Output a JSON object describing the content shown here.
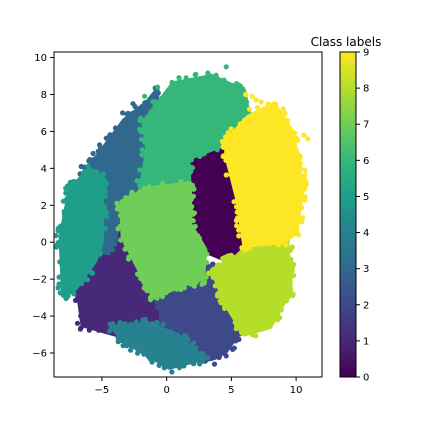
{
  "chart_data": {
    "type": "scatter",
    "title": "",
    "xlabel": "",
    "ylabel": "",
    "xlim": [
      -8.7,
      12.0
    ],
    "ylim": [
      -7.3,
      10.3
    ],
    "xticks": [
      -5,
      0,
      5,
      10
    ],
    "yticks": [
      -6,
      -4,
      -2,
      0,
      2,
      4,
      6,
      8,
      10
    ],
    "grid": false,
    "colormap": "viridis",
    "colorbar": {
      "title": "Class labels",
      "ticks": [
        0,
        1,
        2,
        3,
        4,
        5,
        6,
        7,
        8,
        9
      ],
      "range": [
        0,
        9
      ]
    },
    "class_colors": [
      "#440154",
      "#482878",
      "#3e4989",
      "#31688e",
      "#26828e",
      "#1f9e89",
      "#35b779",
      "#6ece58",
      "#b5de2b",
      "#fde725"
    ],
    "clusters": [
      {
        "label": 0,
        "polygon": [
          [
            1.6,
            4.5
          ],
          [
            3.7,
            6.0
          ],
          [
            4.5,
            4.8
          ],
          [
            5.6,
            1.2
          ],
          [
            6.1,
            -0.2
          ],
          [
            5.4,
            -1.2
          ],
          [
            3.3,
            -0.6
          ],
          [
            1.8,
            0.9
          ],
          [
            1.5,
            3.2
          ]
        ]
      },
      {
        "label": 1,
        "polygon": [
          [
            -4.9,
            -0.8
          ],
          [
            -3.2,
            0.8
          ],
          [
            -1.7,
            -0.6
          ],
          [
            -0.3,
            -2.3
          ],
          [
            -0.3,
            -4.5
          ],
          [
            -3.0,
            -5.2
          ],
          [
            -6.5,
            -4.5
          ],
          [
            -7.0,
            -2.0
          ],
          [
            -6.0,
            -0.7
          ]
        ]
      },
      {
        "label": 2,
        "polygon": [
          [
            -0.4,
            -3.2
          ],
          [
            1.4,
            -2.1
          ],
          [
            3.2,
            -1.3
          ],
          [
            4.6,
            -2.0
          ],
          [
            5.7,
            -4.8
          ],
          [
            4.5,
            -6.0
          ],
          [
            2.0,
            -6.3
          ],
          [
            -0.5,
            -5.2
          ]
        ]
      },
      {
        "label": 3,
        "polygon": [
          [
            -5.0,
            5.0
          ],
          [
            -3.3,
            6.6
          ],
          [
            -1.5,
            7.6
          ],
          [
            -0.7,
            8.3
          ],
          [
            -1.0,
            5.0
          ],
          [
            -2.0,
            2.5
          ],
          [
            -3.5,
            1.2
          ],
          [
            -4.5,
            -0.6
          ],
          [
            -5.9,
            -0.4
          ],
          [
            -6.4,
            3.7
          ]
        ]
      },
      {
        "label": 4,
        "polygon": [
          [
            -4.3,
            -4.6
          ],
          [
            -1.5,
            -4.4
          ],
          [
            0.8,
            -5.0
          ],
          [
            2.9,
            -6.3
          ],
          [
            0.2,
            -6.8
          ],
          [
            -3.2,
            -5.4
          ]
        ]
      },
      {
        "label": 5,
        "polygon": [
          [
            -6.0,
            4.0
          ],
          [
            -5.0,
            3.5
          ],
          [
            -5.0,
            0.0
          ],
          [
            -5.5,
            -1.0
          ],
          [
            -7.0,
            -2.5
          ],
          [
            -8.0,
            -2.9
          ],
          [
            -8.2,
            0.3
          ],
          [
            -7.5,
            2.8
          ]
        ]
      },
      {
        "label": 6,
        "polygon": [
          [
            -1.8,
            6.5
          ],
          [
            0.5,
            8.6
          ],
          [
            3.5,
            9.0
          ],
          [
            6.0,
            8.2
          ],
          [
            6.4,
            6.6
          ],
          [
            4.5,
            5.3
          ],
          [
            1.6,
            4.5
          ],
          [
            1.8,
            3.0
          ],
          [
            0.3,
            3.2
          ],
          [
            -2.1,
            2.6
          ],
          [
            -1.5,
            5.0
          ]
        ]
      },
      {
        "label": 7,
        "polygon": [
          [
            -3.5,
            2.2
          ],
          [
            -1.5,
            2.9
          ],
          [
            1.8,
            3.2
          ],
          [
            1.8,
            1.0
          ],
          [
            3.0,
            -0.4
          ],
          [
            2.8,
            -2.0
          ],
          [
            1.3,
            -2.3
          ],
          [
            -1.0,
            -3.0
          ],
          [
            -2.5,
            -1.0
          ],
          [
            -3.4,
            0.3
          ]
        ]
      },
      {
        "label": 8,
        "polygon": [
          [
            3.5,
            -1.5
          ],
          [
            5.0,
            -0.9
          ],
          [
            7.0,
            -0.2
          ],
          [
            9.3,
            0.2
          ],
          [
            9.6,
            -2.6
          ],
          [
            8.0,
            -4.6
          ],
          [
            6.0,
            -5.0
          ],
          [
            4.5,
            -3.3
          ]
        ]
      },
      {
        "label": 9,
        "polygon": [
          [
            4.6,
            5.5
          ],
          [
            6.3,
            6.8
          ],
          [
            8.3,
            7.5
          ],
          [
            9.7,
            6.0
          ],
          [
            10.5,
            3.0
          ],
          [
            10.0,
            0.5
          ],
          [
            9.0,
            0.0
          ],
          [
            6.0,
            -0.2
          ],
          [
            5.5,
            2.2
          ],
          [
            4.6,
            4.7
          ]
        ]
      }
    ],
    "outlier_points": [
      [
        4.6,
        9.5
      ],
      [
        5.6,
        8.5
      ],
      [
        6.1,
        8.0
      ],
      [
        6.9,
        7.7
      ],
      [
        6.4,
        7.2
      ],
      [
        3.2,
        9.0
      ],
      [
        1.5,
        8.9
      ],
      [
        1.0,
        8.7
      ],
      [
        -0.7,
        8.4
      ],
      [
        -1.7,
        7.9
      ],
      [
        -2.6,
        7.5
      ],
      [
        -3.4,
        7.0
      ],
      [
        8.3,
        7.5
      ],
      [
        8.8,
        7.0
      ],
      [
        10.6,
        5.8
      ],
      [
        10.3,
        4.6
      ],
      [
        10.7,
        3.9
      ],
      [
        10.4,
        2.6
      ],
      [
        9.8,
        1.5
      ],
      [
        9.4,
        -1.4
      ],
      [
        9.0,
        -2.8
      ],
      [
        8.2,
        -3.9
      ],
      [
        -6.6,
        4.1
      ],
      [
        -7.2,
        2.9
      ],
      [
        -7.9,
        1.6
      ],
      [
        -7.9,
        -0.8
      ],
      [
        -7.8,
        -2.3
      ],
      [
        -7.6,
        -2.9
      ],
      [
        -6.1,
        -4.2
      ],
      [
        -5.6,
        -4.4
      ],
      [
        3.7,
        -6.6
      ],
      [
        1.3,
        -6.7
      ],
      [
        4.6,
        -5.8
      ],
      [
        5.8,
        -4.9
      ],
      [
        -8.0,
        0.2
      ],
      [
        6.6,
        7.9
      ],
      [
        7.3,
        7.6
      ],
      [
        10.9,
        5.6
      ]
    ]
  }
}
